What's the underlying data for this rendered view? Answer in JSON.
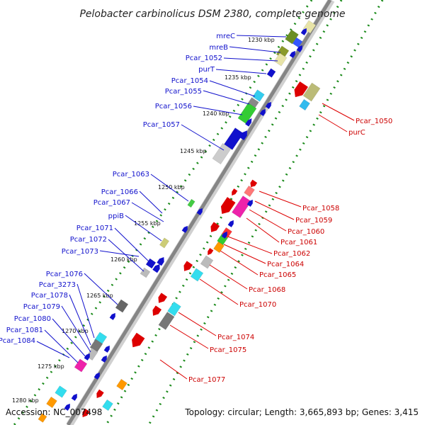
{
  "title": "Pelobacter carbinolicus DSM 2380, complete genome",
  "footer": {
    "accession": "Accession: NC_007498",
    "summary": "Topology: circular; Length: 3,665,893 bp; Genes: 3,415"
  },
  "scale": {
    "kbp_labels": [
      "1230 kbp",
      "1235 kbp",
      "1240 kbp",
      "1245 kbp",
      "1250 kbp",
      "1255 kbp",
      "1260 kbp",
      "1265 kbp",
      "1270 kbp",
      "1275 kbp",
      "1280 kbp"
    ]
  },
  "genes_left": [
    "mreC",
    "mreB",
    "Pcar_1052",
    "purT",
    "Pcar_1054",
    "Pcar_1055",
    "Pcar_1056",
    "Pcar_1057",
    "Pcar_1063",
    "Pcar_1066",
    "Pcar_1067",
    "ppiB",
    "Pcar_1071",
    "Pcar_1072",
    "Pcar_1073",
    "Pcar_1076",
    "Pcar_3273",
    "Pcar_1078",
    "Pcar_1079",
    "Pcar_1080",
    "Pcar_1081",
    "Pcar_1084"
  ],
  "genes_right": [
    "Pcar_1050",
    "purC",
    "Pcar_1058",
    "Pcar_1059",
    "Pcar_1060",
    "Pcar_1061",
    "Pcar_1062",
    "Pcar_1064",
    "Pcar_1065",
    "Pcar_1068",
    "Pcar_1070",
    "Pcar_1074",
    "Pcar_1075",
    "Pcar_1077"
  ],
  "colors": {
    "forward_strand": "#1010cc",
    "reverse_strand": "#cc0000",
    "backbone": "#999999",
    "dotted_track": "#1a8a1a"
  }
}
